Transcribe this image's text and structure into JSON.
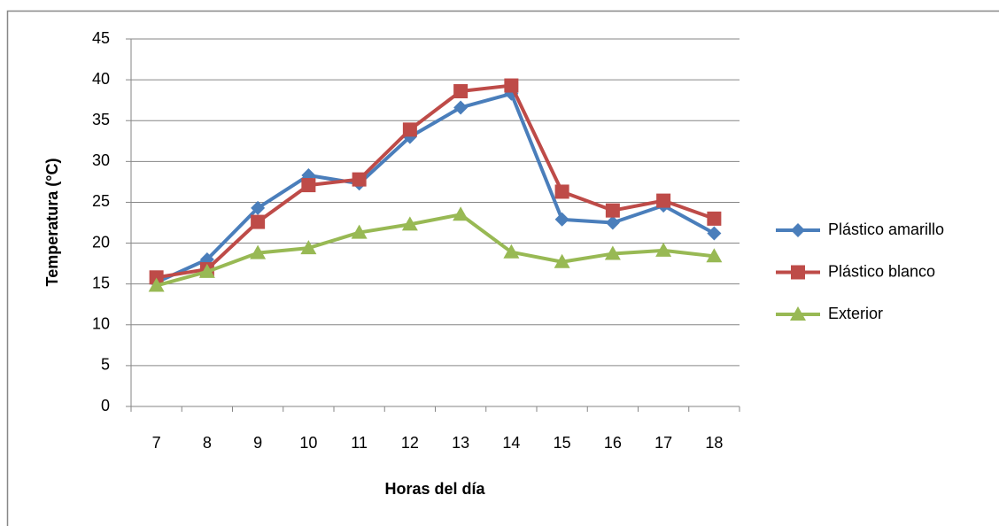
{
  "chart_data": {
    "type": "line",
    "x_label": "Horas del día",
    "y_label": "Temperatura (°C)",
    "categories": [
      "7",
      "8",
      "9",
      "10",
      "11",
      "12",
      "13",
      "14",
      "15",
      "16",
      "17",
      "18"
    ],
    "series": [
      {
        "name": "Plástico amarillo",
        "color": "#4a7ebb",
        "marker": "diamond",
        "values": [
          15.2,
          18,
          24.3,
          28.3,
          27.3,
          33,
          36.6,
          38.3,
          22.9,
          22.5,
          24.6,
          21.2
        ]
      },
      {
        "name": "Plástico blanco",
        "color": "#be4b48",
        "marker": "square",
        "values": [
          15.8,
          16.8,
          22.6,
          27.1,
          27.8,
          33.9,
          38.6,
          39.3,
          26.3,
          24,
          25.2,
          23
        ]
      },
      {
        "name": "Exterior",
        "color": "#98b954",
        "marker": "triangle",
        "values": [
          14.8,
          16.5,
          18.8,
          19.4,
          21.3,
          22.3,
          23.5,
          18.9,
          17.7,
          18.7,
          19.1,
          18.4
        ]
      }
    ],
    "ylim": [
      0,
      45
    ],
    "yticks": [
      0,
      5,
      10,
      15,
      20,
      25,
      30,
      35,
      40,
      45
    ],
    "grid": true,
    "legend": "right"
  }
}
